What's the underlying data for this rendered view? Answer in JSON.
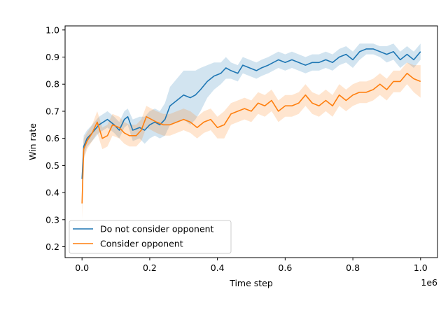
{
  "chart_data": {
    "type": "line",
    "xlabel": "Time step",
    "ylabel": "Win rate",
    "x_scale_label": "1e6",
    "xlim": [
      -50000,
      1050000
    ],
    "ylim": [
      0.16,
      1.015
    ],
    "x_ticks": [
      {
        "value": 0,
        "label": "0.0"
      },
      {
        "value": 200000,
        "label": "0.2"
      },
      {
        "value": 400000,
        "label": "0.4"
      },
      {
        "value": 600000,
        "label": "0.6"
      },
      {
        "value": 800000,
        "label": "0.8"
      },
      {
        "value": 1000000,
        "label": "1.0"
      }
    ],
    "y_ticks": [
      {
        "value": 0.2,
        "label": "0.2"
      },
      {
        "value": 0.3,
        "label": "0.3"
      },
      {
        "value": 0.4,
        "label": "0.4"
      },
      {
        "value": 0.5,
        "label": "0.5"
      },
      {
        "value": 0.6,
        "label": "0.6"
      },
      {
        "value": 0.7,
        "label": "0.7"
      },
      {
        "value": 0.8,
        "label": "0.8"
      },
      {
        "value": 0.9,
        "label": "0.9"
      },
      {
        "value": 1.0,
        "label": "1.0"
      }
    ],
    "grid": false,
    "legend_position": "lower-left",
    "series": [
      {
        "name": "Do not consider opponent",
        "color": "#1f77b4",
        "band_color": "#1f77b4",
        "points": [
          [
            0,
            0.45
          ],
          [
            5000,
            0.57
          ],
          [
            15000,
            0.6
          ],
          [
            30000,
            0.62
          ],
          [
            50000,
            0.65
          ],
          [
            75000,
            0.67
          ],
          [
            95000,
            0.65
          ],
          [
            110000,
            0.63
          ],
          [
            125000,
            0.67
          ],
          [
            135000,
            0.68
          ],
          [
            150000,
            0.63
          ],
          [
            170000,
            0.64
          ],
          [
            185000,
            0.63
          ],
          [
            200000,
            0.65
          ],
          [
            215000,
            0.66
          ],
          [
            230000,
            0.65
          ],
          [
            245000,
            0.67
          ],
          [
            260000,
            0.72
          ],
          [
            280000,
            0.74
          ],
          [
            300000,
            0.76
          ],
          [
            320000,
            0.75
          ],
          [
            335000,
            0.76
          ],
          [
            350000,
            0.78
          ],
          [
            370000,
            0.81
          ],
          [
            390000,
            0.83
          ],
          [
            410000,
            0.84
          ],
          [
            425000,
            0.86
          ],
          [
            440000,
            0.85
          ],
          [
            460000,
            0.84
          ],
          [
            475000,
            0.87
          ],
          [
            495000,
            0.86
          ],
          [
            515000,
            0.85
          ],
          [
            530000,
            0.86
          ],
          [
            550000,
            0.87
          ],
          [
            565000,
            0.88
          ],
          [
            580000,
            0.89
          ],
          [
            600000,
            0.88
          ],
          [
            620000,
            0.89
          ],
          [
            640000,
            0.88
          ],
          [
            660000,
            0.87
          ],
          [
            680000,
            0.88
          ],
          [
            700000,
            0.88
          ],
          [
            720000,
            0.89
          ],
          [
            740000,
            0.88
          ],
          [
            760000,
            0.9
          ],
          [
            780000,
            0.91
          ],
          [
            800000,
            0.89
          ],
          [
            820000,
            0.92
          ],
          [
            840000,
            0.93
          ],
          [
            860000,
            0.93
          ],
          [
            880000,
            0.92
          ],
          [
            900000,
            0.91
          ],
          [
            920000,
            0.92
          ],
          [
            940000,
            0.89
          ],
          [
            960000,
            0.91
          ],
          [
            980000,
            0.89
          ],
          [
            1000000,
            0.92
          ]
        ],
        "band_halfwidth": [
          0.05,
          0.04,
          0.03,
          0.03,
          0.03,
          0.03,
          0.03,
          0.03,
          0.03,
          0.03,
          0.04,
          0.04,
          0.05,
          0.05,
          0.05,
          0.05,
          0.06,
          0.07,
          0.08,
          0.09,
          0.1,
          0.09,
          0.08,
          0.06,
          0.05,
          0.04,
          0.04,
          0.03,
          0.03,
          0.03,
          0.03,
          0.03,
          0.03,
          0.03,
          0.03,
          0.03,
          0.03,
          0.03,
          0.03,
          0.03,
          0.03,
          0.03,
          0.03,
          0.03,
          0.03,
          0.03,
          0.03,
          0.03,
          0.02,
          0.02,
          0.02,
          0.03,
          0.03,
          0.03,
          0.03,
          0.03,
          0.03
        ]
      },
      {
        "name": "Consider opponent",
        "color": "#ff7f0e",
        "band_color": "#ff7f0e",
        "points": [
          [
            0,
            0.36
          ],
          [
            5000,
            0.56
          ],
          [
            15000,
            0.59
          ],
          [
            30000,
            0.62
          ],
          [
            45000,
            0.66
          ],
          [
            60000,
            0.6
          ],
          [
            75000,
            0.61
          ],
          [
            90000,
            0.65
          ],
          [
            110000,
            0.64
          ],
          [
            125000,
            0.62
          ],
          [
            140000,
            0.61
          ],
          [
            160000,
            0.61
          ],
          [
            175000,
            0.63
          ],
          [
            190000,
            0.68
          ],
          [
            205000,
            0.67
          ],
          [
            220000,
            0.66
          ],
          [
            240000,
            0.65
          ],
          [
            260000,
            0.65
          ],
          [
            280000,
            0.66
          ],
          [
            300000,
            0.67
          ],
          [
            320000,
            0.66
          ],
          [
            340000,
            0.64
          ],
          [
            360000,
            0.66
          ],
          [
            380000,
            0.67
          ],
          [
            400000,
            0.64
          ],
          [
            420000,
            0.65
          ],
          [
            440000,
            0.69
          ],
          [
            460000,
            0.7
          ],
          [
            480000,
            0.71
          ],
          [
            500000,
            0.7
          ],
          [
            520000,
            0.73
          ],
          [
            540000,
            0.72
          ],
          [
            560000,
            0.74
          ],
          [
            580000,
            0.7
          ],
          [
            600000,
            0.72
          ],
          [
            620000,
            0.72
          ],
          [
            640000,
            0.73
          ],
          [
            660000,
            0.76
          ],
          [
            680000,
            0.73
          ],
          [
            700000,
            0.72
          ],
          [
            720000,
            0.74
          ],
          [
            740000,
            0.72
          ],
          [
            760000,
            0.76
          ],
          [
            780000,
            0.74
          ],
          [
            800000,
            0.76
          ],
          [
            820000,
            0.77
          ],
          [
            840000,
            0.77
          ],
          [
            860000,
            0.78
          ],
          [
            880000,
            0.8
          ],
          [
            900000,
            0.78
          ],
          [
            920000,
            0.81
          ],
          [
            940000,
            0.81
          ],
          [
            960000,
            0.84
          ],
          [
            980000,
            0.82
          ],
          [
            1000000,
            0.81
          ]
        ],
        "band_halfwidth": [
          0.06,
          0.04,
          0.03,
          0.03,
          0.04,
          0.04,
          0.04,
          0.04,
          0.04,
          0.04,
          0.04,
          0.04,
          0.04,
          0.04,
          0.04,
          0.04,
          0.04,
          0.04,
          0.04,
          0.04,
          0.04,
          0.04,
          0.04,
          0.04,
          0.04,
          0.05,
          0.04,
          0.04,
          0.04,
          0.04,
          0.04,
          0.04,
          0.04,
          0.04,
          0.04,
          0.04,
          0.04,
          0.04,
          0.04,
          0.04,
          0.04,
          0.04,
          0.04,
          0.04,
          0.04,
          0.04,
          0.04,
          0.04,
          0.04,
          0.04,
          0.04,
          0.04,
          0.04,
          0.05,
          0.06
        ]
      }
    ]
  }
}
